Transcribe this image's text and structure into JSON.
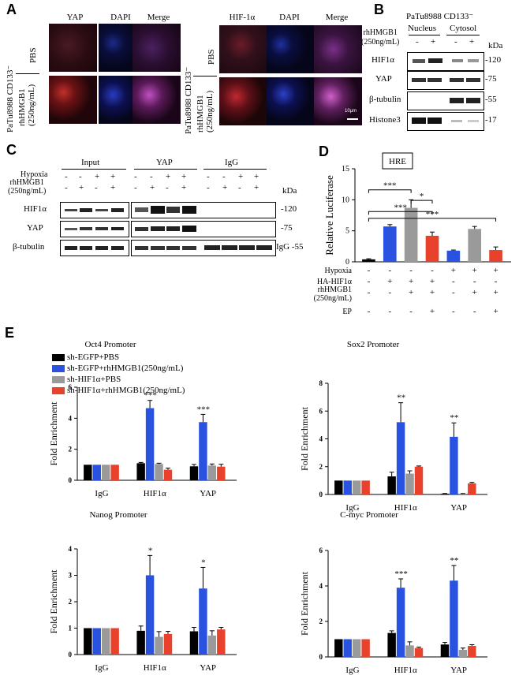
{
  "panelA": {
    "label": "A",
    "left": {
      "cell_line": "PaTu8988 CD133⁻",
      "headers": [
        "YAP",
        "DAPI",
        "Merge"
      ],
      "rows": [
        "PBS",
        "rhHMGB1\n(250ng/mL)"
      ]
    },
    "right": {
      "cell_line": "PaTu8988 CD133⁻",
      "headers": [
        "HIF-1α",
        "DAPI",
        "Merge"
      ],
      "rows": [
        "PBS",
        "rhHMGB1\n(250ng/mL)"
      ],
      "scalebar": "10μm"
    }
  },
  "panelB": {
    "label": "B",
    "cell_line": "PaTu8988 CD133⁻",
    "fractions": [
      "Nucleus",
      "Cytosol"
    ],
    "treatment": "rhHMGB1\n(250ng/mL)",
    "lanes": [
      "-",
      "+",
      "-",
      "+"
    ],
    "unit": "kDa",
    "bands": [
      {
        "name": "HIF1α",
        "kda": "-120"
      },
      {
        "name": "YAP",
        "kda": "-75"
      },
      {
        "name": "β-tubulin",
        "kda": "-55"
      },
      {
        "name": "Histone3",
        "kda": "-17"
      }
    ]
  },
  "panelC": {
    "label": "C",
    "groups": [
      "Input",
      "YAP",
      "IgG"
    ],
    "hypoxia_label": "Hypoxia",
    "treatment_label": "rhHMGB1\n(250ng/mL)",
    "hypoxia": [
      "-",
      "-",
      "+",
      "+",
      "-",
      "-",
      "+",
      "+",
      "-",
      "-",
      "+",
      "+"
    ],
    "rhhmgb1": [
      "-",
      "+",
      "-",
      "+",
      "-",
      "+",
      "-",
      "+",
      "-",
      "+",
      "-",
      "+"
    ],
    "unit": "kDa",
    "bands": [
      {
        "name": "HIF1α",
        "kda": "-120"
      },
      {
        "name": "YAP",
        "kda": "-75"
      },
      {
        "name": "β-tubulin",
        "kda": "IgG -55"
      }
    ]
  },
  "panelD": {
    "label": "D",
    "colors": [
      "#000000",
      "#2a52e0",
      "#9a9a9a",
      "#e8422c"
    ],
    "chart_data": {
      "type": "bar",
      "title": "HRE",
      "ylabel": "Relative Luciferase",
      "ylim": [
        0,
        15
      ],
      "yticks": [
        0,
        5,
        10,
        15
      ],
      "values": [
        0.4,
        5.7,
        8.7,
        4.2,
        1.8,
        5.3,
        1.9
      ],
      "errors": [
        0.1,
        0.3,
        1.3,
        0.6,
        0.1,
        0.4,
        0.5
      ],
      "bar_colors": [
        "#000000",
        "#2a52e0",
        "#9a9a9a",
        "#e8422c",
        "#2a52e0",
        "#9a9a9a",
        "#e8422c"
      ],
      "row_labels": [
        "Hypoxia",
        "HA-HIF1α",
        "rhHMGB1\n(250ng/mL)",
        "EP"
      ],
      "conditions": [
        [
          "-",
          "-",
          "-",
          "-",
          "+",
          "+",
          "+"
        ],
        [
          "-",
          "+",
          "+",
          "+",
          "-",
          "-",
          "-"
        ],
        [
          "-",
          "-",
          "+",
          "+",
          "-",
          "+",
          "+"
        ],
        [
          "-",
          "-",
          "-",
          "+",
          "-",
          "-",
          "+"
        ]
      ],
      "significance": [
        {
          "from": 0,
          "to": 2,
          "label": "***"
        },
        {
          "from": 2,
          "to": 3,
          "label": "*"
        },
        {
          "from": 0,
          "to": 3,
          "label": "***"
        },
        {
          "from": 0,
          "to": 6,
          "label": "***"
        }
      ]
    }
  },
  "panelE": {
    "label": "E",
    "legend": [
      "sh-EGFP+PBS",
      "sh-EGFP+rhHMGB1(250ng/mL)",
      "sh-HIF1α+PBS",
      "sh-HIF1α+rhHMGB1(250ng/mL)"
    ],
    "colors": [
      "#000000",
      "#2a52e0",
      "#9a9a9a",
      "#e8422c"
    ],
    "chart_data": [
      {
        "type": "bar",
        "title": "Oct4 Promoter",
        "ylabel": "Fold Enrichment",
        "categories": [
          "IgG",
          "HIF1α",
          "YAP"
        ],
        "ylim": [
          0,
          6
        ],
        "yticks": [
          0,
          2,
          4,
          6
        ],
        "series": [
          {
            "name": "sh-EGFP+PBS",
            "values": [
              1,
              1.1,
              0.9
            ],
            "errors": [
              0,
              0.05,
              0.12
            ]
          },
          {
            "name": "sh-EGFP+rhHMGB1(250ng/mL)",
            "values": [
              1,
              4.65,
              3.75
            ],
            "errors": [
              0,
              0.5,
              0.5
            ]
          },
          {
            "name": "sh-HIF1α+PBS",
            "values": [
              1,
              1.05,
              0.95
            ],
            "errors": [
              0,
              0.05,
              0.1
            ]
          },
          {
            "name": "sh-HIF1α+rhHMGB1(250ng/mL)",
            "values": [
              1,
              0.68,
              0.88
            ],
            "errors": [
              0,
              0.1,
              0.15
            ]
          }
        ],
        "stars": [
          "",
          "***",
          "***"
        ]
      },
      {
        "type": "bar",
        "title": "Sox2 Promoter",
        "ylabel": "Fold Enrichment",
        "categories": [
          "IgG",
          "HIF1α",
          "YAP"
        ],
        "ylim": [
          0,
          8
        ],
        "yticks": [
          0,
          2,
          4,
          6,
          8
        ],
        "series": [
          {
            "name": "sh-EGFP+PBS",
            "values": [
              1,
              1.3,
              0.05
            ],
            "errors": [
              0,
              0.3,
              0.02
            ]
          },
          {
            "name": "sh-EGFP+rhHMGB1(250ng/mL)",
            "values": [
              1,
              5.2,
              4.15
            ],
            "errors": [
              0,
              1.4,
              1.0
            ]
          },
          {
            "name": "sh-HIF1α+PBS",
            "values": [
              1,
              1.5,
              0.05
            ],
            "errors": [
              0,
              0.2,
              0.02
            ]
          },
          {
            "name": "sh-HIF1α+rhHMGB1(250ng/mL)",
            "values": [
              1,
              2.0,
              0.8
            ],
            "errors": [
              0,
              0.05,
              0.07
            ]
          }
        ],
        "stars": [
          "",
          "**",
          "**"
        ]
      },
      {
        "type": "bar",
        "title": "Nanog Promoter",
        "ylabel": "Fold Enrichment",
        "categories": [
          "IgG",
          "HIF1α",
          "YAP"
        ],
        "ylim": [
          0,
          4
        ],
        "yticks": [
          0,
          1,
          2,
          3,
          4
        ],
        "series": [
          {
            "name": "sh-EGFP+PBS",
            "values": [
              1,
              0.9,
              0.88
            ],
            "errors": [
              0,
              0.18,
              0.15
            ]
          },
          {
            "name": "sh-EGFP+rhHMGB1(250ng/mL)",
            "values": [
              1,
              3.0,
              2.5
            ],
            "errors": [
              0,
              0.75,
              0.8
            ]
          },
          {
            "name": "sh-HIF1α+PBS",
            "values": [
              1,
              0.67,
              0.72
            ],
            "errors": [
              0,
              0.2,
              0.18
            ]
          },
          {
            "name": "sh-HIF1α+rhHMGB1(250ng/mL)",
            "values": [
              1,
              0.78,
              0.95
            ],
            "errors": [
              0,
              0.1,
              0.08
            ]
          }
        ],
        "stars": [
          "",
          "*",
          "*"
        ]
      },
      {
        "type": "bar",
        "title": "C-myc Promoter",
        "ylabel": "Fold Enrichment",
        "categories": [
          "IgG",
          "HIF1α",
          "YAP"
        ],
        "ylim": [
          0,
          6
        ],
        "yticks": [
          0,
          2,
          4,
          6
        ],
        "series": [
          {
            "name": "sh-EGFP+PBS",
            "values": [
              1,
              1.35,
              0.7
            ],
            "errors": [
              0,
              0.12,
              0.12
            ]
          },
          {
            "name": "sh-EGFP+rhHMGB1(250ng/mL)",
            "values": [
              1,
              3.9,
              4.3
            ],
            "errors": [
              0,
              0.5,
              0.85
            ]
          },
          {
            "name": "sh-HIF1α+PBS",
            "values": [
              1,
              0.65,
              0.4
            ],
            "errors": [
              0,
              0.2,
              0.1
            ]
          },
          {
            "name": "sh-HIF1α+rhHMGB1(250ng/mL)",
            "values": [
              1,
              0.5,
              0.62
            ],
            "errors": [
              0,
              0.05,
              0.07
            ]
          }
        ],
        "stars": [
          "",
          "***",
          "**"
        ]
      }
    ]
  }
}
